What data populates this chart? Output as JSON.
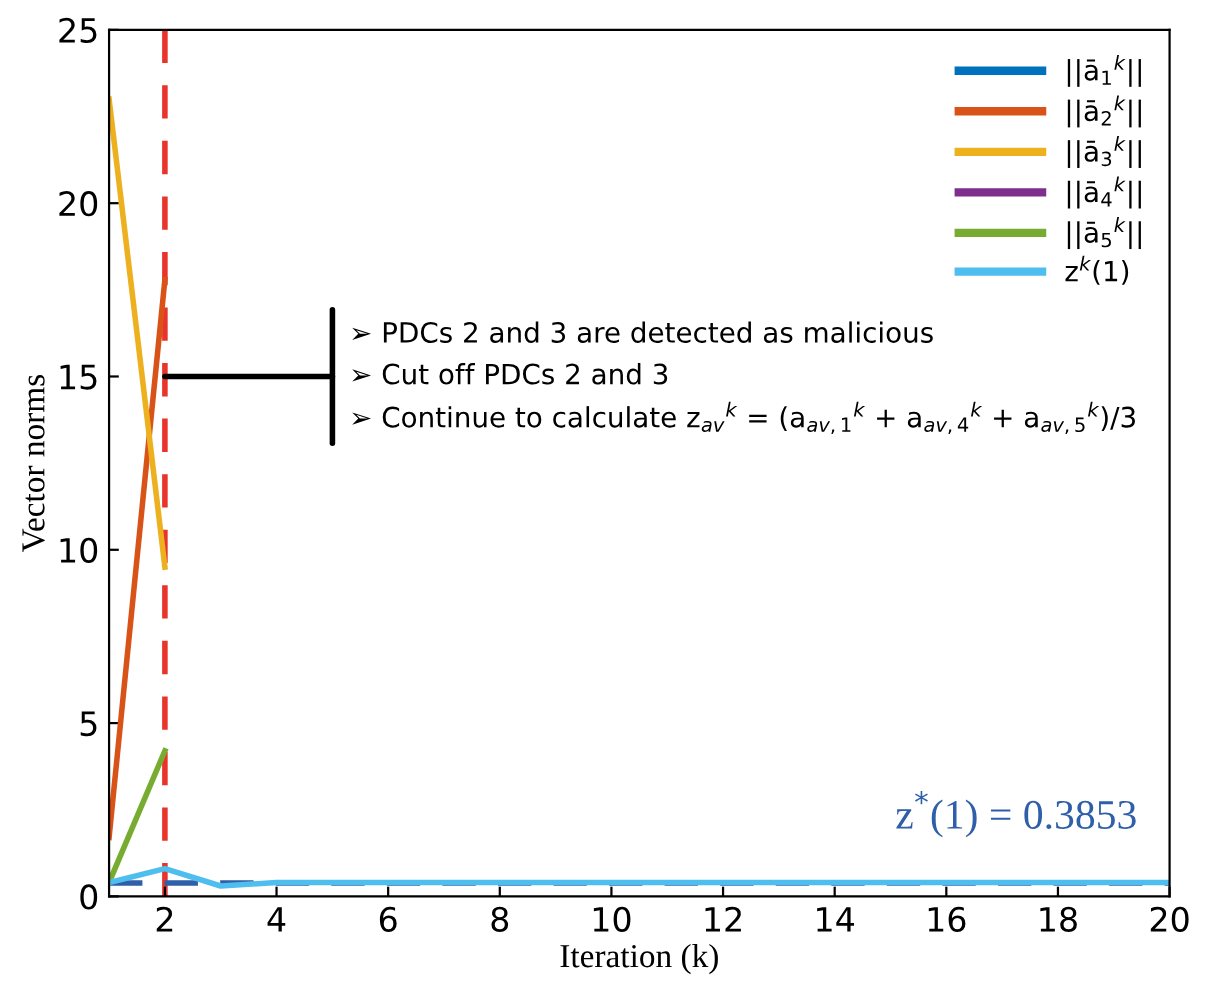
{
  "chart_data": {
    "type": "line",
    "xlabel": "Iteration (k)",
    "ylabel": "Vector norms",
    "x": [
      1,
      2,
      3,
      4,
      5,
      6,
      7,
      8,
      9,
      10,
      11,
      12,
      13,
      14,
      15,
      16,
      17,
      18,
      19,
      20
    ],
    "xlim": [
      1,
      20
    ],
    "xticks": [
      2,
      4,
      6,
      8,
      10,
      12,
      14,
      16,
      18,
      20
    ],
    "ylim": [
      0,
      25
    ],
    "yticks": [
      0,
      5,
      10,
      15,
      20,
      25
    ],
    "series": [
      {
        "name": "||ā$_{1}$$^{k}$||",
        "color": "#0072bd",
        "values": [
          null,
          null,
          null,
          null,
          null,
          null,
          null,
          null,
          null,
          null,
          null,
          null,
          null,
          null,
          null,
          null,
          null,
          null,
          null,
          null
        ]
      },
      {
        "name": "||ā$_{2}$$^{k}$||",
        "color": "#d95319",
        "values": [
          1.7,
          17.8,
          null,
          null,
          null,
          null,
          null,
          null,
          null,
          null,
          null,
          null,
          null,
          null,
          null,
          null,
          null,
          null,
          null,
          null
        ]
      },
      {
        "name": "||ā$_{3}$$^{k}$||",
        "color": "#edb120",
        "values": [
          23,
          9.5,
          null,
          null,
          null,
          null,
          null,
          null,
          null,
          null,
          null,
          null,
          null,
          null,
          null,
          null,
          null,
          null,
          null,
          null
        ]
      },
      {
        "name": "||ā$_{4}$$^{k}$||",
        "color": "#7e2f8e",
        "values": [
          null,
          null,
          null,
          null,
          null,
          null,
          null,
          null,
          null,
          null,
          null,
          null,
          null,
          null,
          null,
          null,
          null,
          null,
          null,
          null
        ]
      },
      {
        "name": "||ā$_{5}$$^{k}$||",
        "color": "#77ac30",
        "values": [
          0.4,
          4.2,
          null,
          null,
          null,
          null,
          null,
          null,
          null,
          null,
          null,
          null,
          null,
          null,
          null,
          null,
          null,
          null,
          null,
          null
        ]
      },
      {
        "name": "z$^{k}$(1)",
        "color": "#4dbeee",
        "values": [
          0.4,
          0.8,
          0.3,
          0.4,
          0.4,
          0.4,
          0.4,
          0.4,
          0.4,
          0.4,
          0.4,
          0.4,
          0.4,
          0.4,
          0.4,
          0.4,
          0.4,
          0.4,
          0.4,
          0.4
        ]
      }
    ],
    "ref_lines": [
      {
        "axis": "x",
        "value": 2,
        "label": null,
        "color": "#e8342a",
        "line_style": "dashed"
      },
      {
        "axis": "y",
        "value": 0.3853,
        "label": "z$^{*}$(1) = 0.3853",
        "color": "#2e5fa8",
        "line_style": "dashed"
      }
    ],
    "annotations": [
      "➢ PDCs 2 and 3 are detected as malicious",
      {
        "text": "➢ Cut off PDCs 2 and 3",
        "x": 2,
        "y": 15
      },
      "➢ Continue to calculate z$_{av}$$^{k}$ = (a$_{av,1}$$^{k}$ + a$_{av,4}$$^{k}$ + a$_{av,5}$$^{k}$)/3"
    ],
    "legend": "top right",
    "grid": false,
    "marker": "none",
    "line_style": "solid"
  }
}
